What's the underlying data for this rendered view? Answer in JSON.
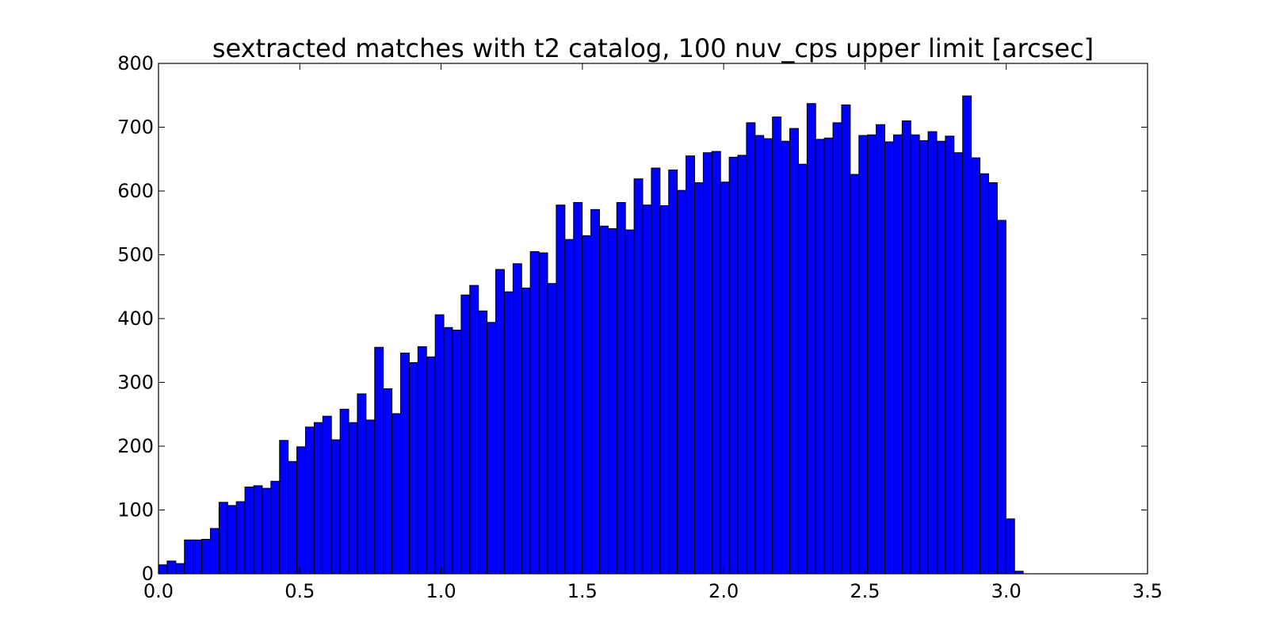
{
  "chart_data": {
    "type": "bar",
    "title": "sextracted matches with t2 catalog, 100 nuv_cps upper limit [arcsec]",
    "xlabel": "",
    "ylabel": "",
    "xlim": [
      0.0,
      3.5
    ],
    "ylim": [
      0,
      800
    ],
    "bin_start": 0.0,
    "bin_width": 0.0306,
    "xticks": [
      "0.0",
      "0.5",
      "1.0",
      "1.5",
      "2.0",
      "2.5",
      "3.0",
      "3.5"
    ],
    "yticks": [
      "0",
      "100",
      "200",
      "300",
      "400",
      "500",
      "600",
      "700",
      "800"
    ],
    "grid": false,
    "bar_color": "#0000ff",
    "values": [
      14,
      20,
      16,
      53,
      53,
      54,
      71,
      112,
      107,
      113,
      136,
      138,
      134,
      145,
      209,
      176,
      199,
      230,
      237,
      247,
      210,
      258,
      237,
      282,
      241,
      355,
      290,
      251,
      346,
      331,
      356,
      340,
      406,
      386,
      382,
      437,
      452,
      412,
      394,
      477,
      442,
      486,
      448,
      505,
      503,
      455,
      578,
      524,
      582,
      530,
      571,
      545,
      541,
      582,
      539,
      619,
      578,
      636,
      577,
      633,
      601,
      655,
      613,
      660,
      662,
      614,
      653,
      656,
      707,
      687,
      682,
      716,
      678,
      698,
      642,
      737,
      681,
      683,
      707,
      735,
      626,
      687,
      688,
      704,
      677,
      688,
      710,
      688,
      679,
      693,
      678,
      686,
      660,
      749,
      652,
      627,
      613,
      554,
      86,
      4
    ]
  }
}
